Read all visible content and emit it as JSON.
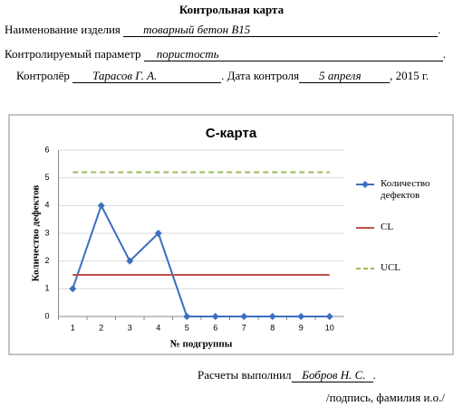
{
  "header": {
    "title": "Контрольная карта",
    "product_label": "Наименование изделия",
    "product_value": "товарный бетон  В15",
    "parameter_label": "Контролируемый параметр",
    "parameter_value": "пористость",
    "inspector_label": "Контролёр",
    "inspector_value": "Тарасов Г. А.",
    "date_label": "Дата контроля",
    "date_value": "5  апреля",
    "year_text": ", 2015 г."
  },
  "chart_data": {
    "type": "line",
    "title": "С-карта",
    "x_label": "№ подгруппы",
    "y_label": "Количество дефектов",
    "categories": [
      "1",
      "2",
      "3",
      "4",
      "5",
      "6",
      "7",
      "8",
      "9",
      "10"
    ],
    "series": [
      {
        "name": "Количество дефектов",
        "color": "#3d6fc0",
        "marker": "diamond",
        "values": [
          1,
          4,
          2,
          3,
          0,
          0,
          0,
          0,
          0,
          0
        ]
      },
      {
        "name": "CL",
        "color": "#c0504d",
        "values": [
          1.5,
          1.5,
          1.5,
          1.5,
          1.5,
          1.5,
          1.5,
          1.5,
          1.5,
          1.5
        ]
      },
      {
        "name": "UCL",
        "color": "#9bbb59",
        "dashed": true,
        "values": [
          5.2,
          5.2,
          5.2,
          5.2,
          5.2,
          5.2,
          5.2,
          5.2,
          5.2,
          5.2
        ]
      }
    ],
    "ylim": [
      0,
      6
    ],
    "yticks": [
      0,
      1,
      2,
      3,
      4,
      5,
      6
    ],
    "grid": true,
    "legend": "right"
  },
  "footer": {
    "done_label": "Расчеты выполнил",
    "done_value": "Бобров Н. С.",
    "signature_note": "/подпись, фамилия и.о./"
  }
}
